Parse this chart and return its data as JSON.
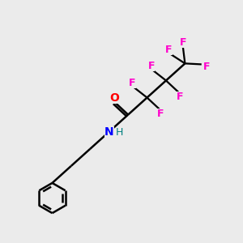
{
  "bg_color": "#ebebeb",
  "bond_color": "#000000",
  "O_color": "#ff0000",
  "N_color": "#0000ff",
  "H_color": "#008080",
  "F_color": "#ff00cc",
  "line_width": 1.8,
  "figsize": [
    3.0,
    3.0
  ],
  "dpi": 100,
  "xlim": [
    0,
    10
  ],
  "ylim": [
    0,
    10
  ]
}
